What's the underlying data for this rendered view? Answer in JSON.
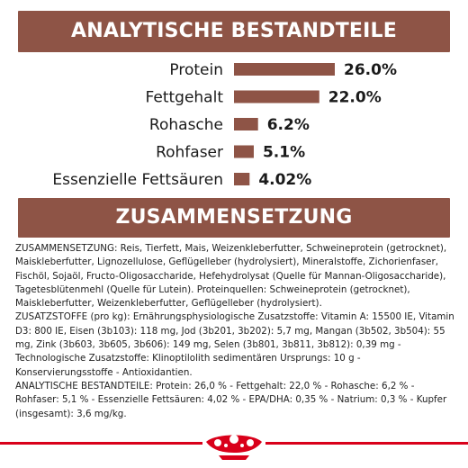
{
  "sections": {
    "analytic_title": "ANALYTISCHE BESTANDTEILE",
    "composition_title": "ZUSAMMENSETZUNG"
  },
  "chart_data": {
    "type": "bar",
    "orientation": "horizontal",
    "title": "ANALYTISCHE BESTANDTEILE",
    "categories": [
      "Protein",
      "Fettgehalt",
      "Rohasche",
      "Rohfaser",
      "Essenzielle Fettsäuren"
    ],
    "values": [
      26.0,
      22.0,
      6.2,
      5.1,
      4.02
    ],
    "value_labels": [
      "26.0%",
      "22.0%",
      "6.2%",
      "5.1%",
      "4.02%"
    ],
    "unit": "%",
    "xlim": [
      0,
      26.0
    ],
    "grid": false,
    "legend": "none",
    "bar_color": "#8e5446"
  },
  "composition": {
    "paragraphs": [
      "ZUSAMMENSETZUNG: Reis, Tierfett, Mais, Weizenkleberfutter, Schweineprotein (getrocknet), Maiskleberfutter, Lignozellulose, Geflügelleber (hydrolysiert), Mineralstoffe, Zichorienfaser, Fischöl, Sojaöl, Fructo-Oligosaccharide, Hefehydrolysat (Quelle für Mannan-Oligosaccharide), Tagetesblütenmehl (Quelle für Lutein). Proteinquellen: Schweineprotein (getrocknet), Maiskleberfutter, Weizenkleberfutter, Geflügelleber (hydrolysiert).",
      "ZUSATZSTOFFE (pro kg): Ernährungsphysiologische Zusatzstoffe: Vitamin A: 15500 IE, Vitamin D3: 800 IE, Eisen (3b103): 118 mg, Jod (3b201, 3b202): 5,7 mg, Mangan (3b502, 3b504): 55 mg, Zink (3b603, 3b605, 3b606): 149 mg, Selen (3b801, 3b811, 3b812): 0,39 mg - Technologische Zusatzstoffe: Klinoptilolith sedimentären Ursprungs: 10 g - Konservierungsstoffe - Antioxidantien.",
      "ANALYTISCHE BESTANDTEILE: Protein: 26,0 % - Fettgehalt: 22,0 % - Rohasche: 6,2 % - Rohfaser: 5,1 % - Essenzielle Fettsäuren: 4,02 % - EPA/DHA: 0,35 % - Natrium: 0,3 % - Kupfer (insgesamt): 3,6 mg/kg."
    ]
  },
  "colors": {
    "brand_brown": "#8e5446",
    "logo_red": "#d9001a"
  },
  "footer": {
    "logo_icon": "royal-canin-crown-logo-icon"
  }
}
